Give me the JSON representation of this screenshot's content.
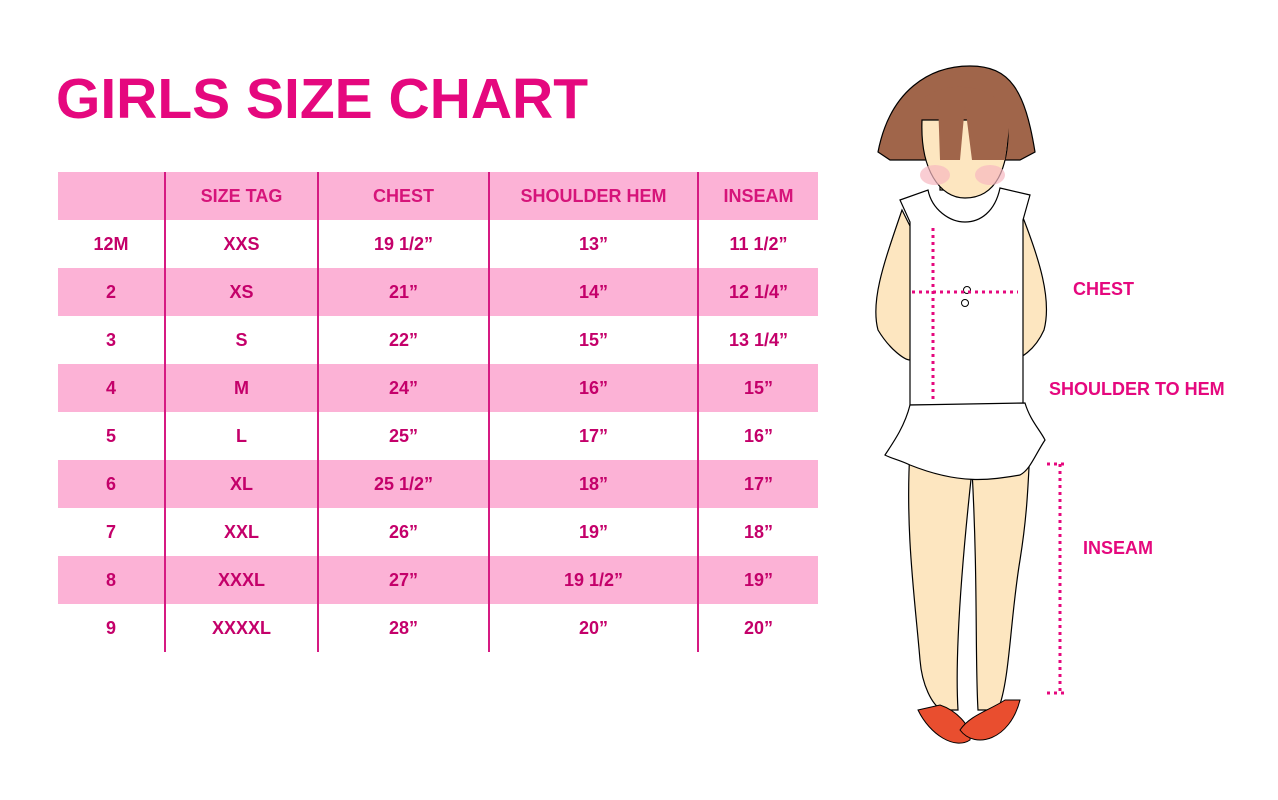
{
  "title": "GIRLS SIZE CHART",
  "table": {
    "headers": [
      "",
      "SIZE TAG",
      "CHEST",
      "SHOULDER HEM",
      "INSEAM"
    ],
    "rows": [
      [
        "12M",
        "XXS",
        "19 1/2”",
        "13”",
        "11 1/2”"
      ],
      [
        "2",
        "XS",
        "21”",
        "14”",
        "12 1/4”"
      ],
      [
        "3",
        "S",
        "22”",
        "15”",
        "13 1/4”"
      ],
      [
        "4",
        "M",
        "24”",
        "16”",
        "15”"
      ],
      [
        "5",
        "L",
        "25”",
        "17”",
        "16”"
      ],
      [
        "6",
        "XL",
        "25 1/2”",
        "18”",
        "17”"
      ],
      [
        "7",
        "XXL",
        "26”",
        "19”",
        "18”"
      ],
      [
        "8",
        "XXXL",
        "27”",
        "19 1/2”",
        "19”"
      ],
      [
        "9",
        "XXXXL",
        "28”",
        "20”",
        "20”"
      ]
    ]
  },
  "figure": {
    "labels": {
      "chest": "CHEST",
      "shoulder": "SHOULDER TO HEM",
      "inseam": "INSEAM"
    }
  },
  "colors": {
    "accent": "#e5087e",
    "row_pink": "#fcb2d6"
  }
}
